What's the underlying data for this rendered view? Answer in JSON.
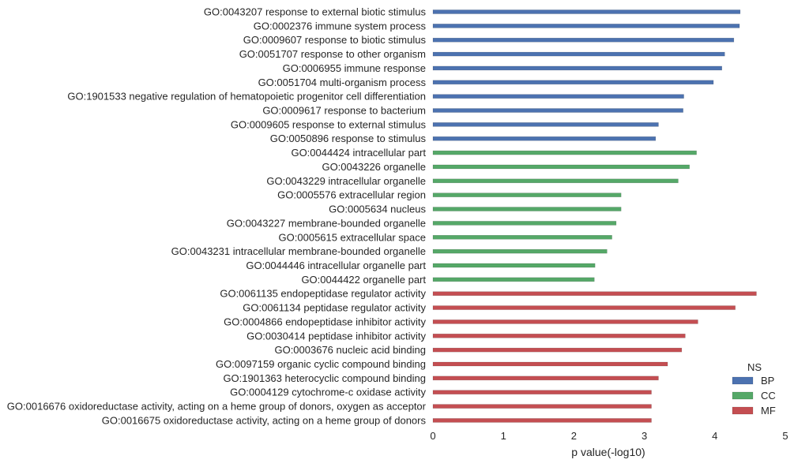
{
  "chart_data": {
    "type": "bar",
    "orientation": "horizontal",
    "xlabel": "p value(-log10)",
    "ylabel": "",
    "xlim": [
      0,
      5
    ],
    "xticks": [
      "0",
      "1",
      "2",
      "3",
      "4",
      "5"
    ],
    "grid": false,
    "legend_title": "NS",
    "legend_position": "bottom-right",
    "colors": {
      "BP": "#4c72b0",
      "CC": "#55a868",
      "MF": "#c44e52"
    },
    "series": [
      {
        "name": "BP"
      },
      {
        "name": "CC"
      },
      {
        "name": "MF"
      }
    ],
    "categories": [
      {
        "label": "GO:0043207 response to external biotic stimulus",
        "value": 4.36,
        "ns": "BP"
      },
      {
        "label": "GO:0002376 immune system process",
        "value": 4.35,
        "ns": "BP"
      },
      {
        "label": "GO:0009607 response to biotic stimulus",
        "value": 4.27,
        "ns": "BP"
      },
      {
        "label": "GO:0051707 response to other organism",
        "value": 4.14,
        "ns": "BP"
      },
      {
        "label": "GO:0006955 immune response",
        "value": 4.1,
        "ns": "BP"
      },
      {
        "label": "GO:0051704 multi-organism process",
        "value": 3.98,
        "ns": "BP"
      },
      {
        "label": "GO:1901533 negative regulation of hematopoietic progenitor cell differentiation",
        "value": 3.56,
        "ns": "BP"
      },
      {
        "label": "GO:0009617 response to bacterium",
        "value": 3.55,
        "ns": "BP"
      },
      {
        "label": "GO:0009605 response to external stimulus",
        "value": 3.2,
        "ns": "BP"
      },
      {
        "label": "GO:0050896 response to stimulus",
        "value": 3.16,
        "ns": "BP"
      },
      {
        "label": "GO:0044424 intracellular part",
        "value": 3.74,
        "ns": "CC"
      },
      {
        "label": "GO:0043226 organelle",
        "value": 3.64,
        "ns": "CC"
      },
      {
        "label": "GO:0043229 intracellular organelle",
        "value": 3.48,
        "ns": "CC"
      },
      {
        "label": "GO:0005576 extracellular region",
        "value": 2.67,
        "ns": "CC"
      },
      {
        "label": "GO:0005634 nucleus",
        "value": 2.67,
        "ns": "CC"
      },
      {
        "label": "GO:0043227 membrane-bounded organelle",
        "value": 2.6,
        "ns": "CC"
      },
      {
        "label": "GO:0005615 extracellular space",
        "value": 2.54,
        "ns": "CC"
      },
      {
        "label": "GO:0043231 intracellular membrane-bounded organelle",
        "value": 2.47,
        "ns": "CC"
      },
      {
        "label": "GO:0044446 intracellular organelle part",
        "value": 2.3,
        "ns": "CC"
      },
      {
        "label": "GO:0044422 organelle part",
        "value": 2.29,
        "ns": "CC"
      },
      {
        "label": "GO:0061135 endopeptidase regulator activity",
        "value": 4.59,
        "ns": "MF"
      },
      {
        "label": "GO:0061134 peptidase regulator activity",
        "value": 4.29,
        "ns": "MF"
      },
      {
        "label": "GO:0004866 endopeptidase inhibitor activity",
        "value": 3.76,
        "ns": "MF"
      },
      {
        "label": "GO:0030414 peptidase inhibitor activity",
        "value": 3.58,
        "ns": "MF"
      },
      {
        "label": "GO:0003676 nucleic acid binding",
        "value": 3.53,
        "ns": "MF"
      },
      {
        "label": "GO:0097159 organic cyclic compound binding",
        "value": 3.33,
        "ns": "MF"
      },
      {
        "label": "GO:1901363 heterocyclic compound binding",
        "value": 3.2,
        "ns": "MF"
      },
      {
        "label": "GO:0004129 cytochrome-c oxidase activity",
        "value": 3.1,
        "ns": "MF"
      },
      {
        "label": "GO:0016676 oxidoreductase activity, acting on a heme group of donors, oxygen as acceptor",
        "value": 3.1,
        "ns": "MF"
      },
      {
        "label": "GO:0016675 oxidoreductase activity, acting on a heme group of donors",
        "value": 3.1,
        "ns": "MF"
      }
    ]
  }
}
